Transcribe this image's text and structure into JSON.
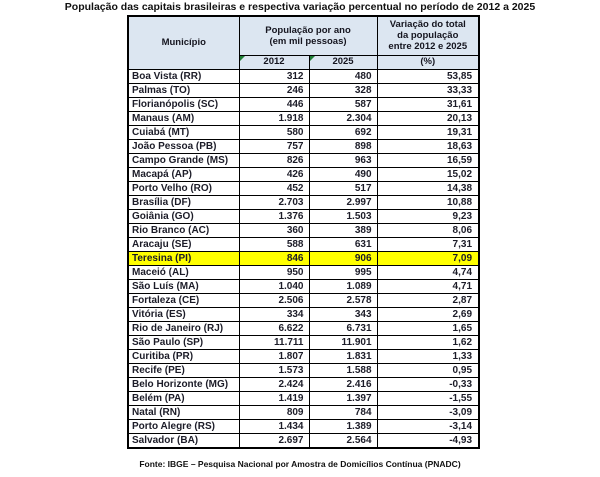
{
  "title": "População das capitais brasileiras e respectiva variação percentual no período de 2012 a 2025",
  "table": {
    "header": {
      "municipio": "Município",
      "populacao": "População por ano\n(em mil pessoas)",
      "variacao": "Variação do total\nda população\nentre 2012 e 2025",
      "variacao_unit": "(%)",
      "year1": "2012",
      "year2": "2025"
    },
    "header_bg": "#DCE6F1",
    "highlight_color": "#FFFF00",
    "flag_icon_color": "#1e7e34",
    "rows": [
      {
        "municipio": "Boa Vista (RR)",
        "p2012": "312",
        "p2025": "480",
        "variacao": "53,85",
        "highlight": false
      },
      {
        "municipio": "Palmas (TO)",
        "p2012": "246",
        "p2025": "328",
        "variacao": "33,33",
        "highlight": false
      },
      {
        "municipio": "Florianópolis (SC)",
        "p2012": "446",
        "p2025": "587",
        "variacao": "31,61",
        "highlight": false
      },
      {
        "municipio": "Manaus (AM)",
        "p2012": "1.918",
        "p2025": "2.304",
        "variacao": "20,13",
        "highlight": false
      },
      {
        "municipio": "Cuiabá (MT)",
        "p2012": "580",
        "p2025": "692",
        "variacao": "19,31",
        "highlight": false
      },
      {
        "municipio": "João Pessoa (PB)",
        "p2012": "757",
        "p2025": "898",
        "variacao": "18,63",
        "highlight": false
      },
      {
        "municipio": "Campo Grande (MS)",
        "p2012": "826",
        "p2025": "963",
        "variacao": "16,59",
        "highlight": false
      },
      {
        "municipio": "Macapá (AP)",
        "p2012": "426",
        "p2025": "490",
        "variacao": "15,02",
        "highlight": false
      },
      {
        "municipio": "Porto Velho (RO)",
        "p2012": "452",
        "p2025": "517",
        "variacao": "14,38",
        "highlight": false
      },
      {
        "municipio": "Brasília (DF)",
        "p2012": "2.703",
        "p2025": "2.997",
        "variacao": "10,88",
        "highlight": false
      },
      {
        "municipio": "Goiânia (GO)",
        "p2012": "1.376",
        "p2025": "1.503",
        "variacao": "9,23",
        "highlight": false
      },
      {
        "municipio": "Rio Branco (AC)",
        "p2012": "360",
        "p2025": "389",
        "variacao": "8,06",
        "highlight": false
      },
      {
        "municipio": "Aracaju (SE)",
        "p2012": "588",
        "p2025": "631",
        "variacao": "7,31",
        "highlight": false
      },
      {
        "municipio": "Teresina (PI)",
        "p2012": "846",
        "p2025": "906",
        "variacao": "7,09",
        "highlight": true
      },
      {
        "municipio": "Maceió (AL)",
        "p2012": "950",
        "p2025": "995",
        "variacao": "4,74",
        "highlight": false
      },
      {
        "municipio": "São Luís (MA)",
        "p2012": "1.040",
        "p2025": "1.089",
        "variacao": "4,71",
        "highlight": false
      },
      {
        "municipio": "Fortaleza (CE)",
        "p2012": "2.506",
        "p2025": "2.578",
        "variacao": "2,87",
        "highlight": false
      },
      {
        "municipio": "Vitória (ES)",
        "p2012": "334",
        "p2025": "343",
        "variacao": "2,69",
        "highlight": false
      },
      {
        "municipio": "Rio de Janeiro (RJ)",
        "p2012": "6.622",
        "p2025": "6.731",
        "variacao": "1,65",
        "highlight": false
      },
      {
        "municipio": "São Paulo (SP)",
        "p2012": "11.711",
        "p2025": "11.901",
        "variacao": "1,62",
        "highlight": false
      },
      {
        "municipio": "Curitiba (PR)",
        "p2012": "1.807",
        "p2025": "1.831",
        "variacao": "1,33",
        "highlight": false
      },
      {
        "municipio": "Recife (PE)",
        "p2012": "1.573",
        "p2025": "1.588",
        "variacao": "0,95",
        "highlight": false
      },
      {
        "municipio": "Belo Horizonte (MG)",
        "p2012": "2.424",
        "p2025": "2.416",
        "variacao": "-0,33",
        "highlight": false
      },
      {
        "municipio": "Belém (PA)",
        "p2012": "1.419",
        "p2025": "1.397",
        "variacao": "-1,55",
        "highlight": false
      },
      {
        "municipio": "Natal (RN)",
        "p2012": "809",
        "p2025": "784",
        "variacao": "-3,09",
        "highlight": false
      },
      {
        "municipio": "Porto Alegre (RS)",
        "p2012": "1.434",
        "p2025": "1.389",
        "variacao": "-3,14",
        "highlight": false
      },
      {
        "municipio": "Salvador (BA)",
        "p2012": "2.697",
        "p2025": "2.564",
        "variacao": "-4,93",
        "highlight": false
      }
    ]
  },
  "footer": "Fonte: IBGE – Pesquisa Nacional por Amostra de Domicílios Contínua (PNADC)",
  "chart_data": {
    "type": "table",
    "title": "População das capitais brasileiras e respectiva variação percentual no período de 2012 a 2025",
    "columns": [
      "Município",
      "População 2012 (mil pessoas)",
      "População 2025 (mil pessoas)",
      "Variação do total da população entre 2012 e 2025 (%)"
    ],
    "rows": [
      [
        "Boa Vista (RR)",
        312,
        480,
        53.85
      ],
      [
        "Palmas (TO)",
        246,
        328,
        33.33
      ],
      [
        "Florianópolis (SC)",
        446,
        587,
        31.61
      ],
      [
        "Manaus (AM)",
        1918,
        2304,
        20.13
      ],
      [
        "Cuiabá (MT)",
        580,
        692,
        19.31
      ],
      [
        "João Pessoa (PB)",
        757,
        898,
        18.63
      ],
      [
        "Campo Grande (MS)",
        826,
        963,
        16.59
      ],
      [
        "Macapá (AP)",
        426,
        490,
        15.02
      ],
      [
        "Porto Velho (RO)",
        452,
        517,
        14.38
      ],
      [
        "Brasília (DF)",
        2703,
        2997,
        10.88
      ],
      [
        "Goiânia (GO)",
        1376,
        1503,
        9.23
      ],
      [
        "Rio Branco (AC)",
        360,
        389,
        8.06
      ],
      [
        "Aracaju (SE)",
        588,
        631,
        7.31
      ],
      [
        "Teresina (PI)",
        846,
        906,
        7.09
      ],
      [
        "Maceió (AL)",
        950,
        995,
        4.74
      ],
      [
        "São Luís (MA)",
        1040,
        1089,
        4.71
      ],
      [
        "Fortaleza (CE)",
        2506,
        2578,
        2.87
      ],
      [
        "Vitória (ES)",
        334,
        343,
        2.69
      ],
      [
        "Rio de Janeiro (RJ)",
        6622,
        6731,
        1.65
      ],
      [
        "São Paulo (SP)",
        11711,
        11901,
        1.62
      ],
      [
        "Curitiba (PR)",
        1807,
        1831,
        1.33
      ],
      [
        "Recife (PE)",
        1573,
        1588,
        0.95
      ],
      [
        "Belo Horizonte (MG)",
        2424,
        2416,
        -0.33
      ],
      [
        "Belém (PA)",
        1419,
        1397,
        -1.55
      ],
      [
        "Natal (RN)",
        809,
        784,
        -3.09
      ],
      [
        "Porto Alegre (RS)",
        1434,
        1389,
        -3.14
      ],
      [
        "Salvador (BA)",
        2697,
        2564,
        -4.93
      ]
    ],
    "highlighted_row": "Teresina (PI)",
    "source": "Fonte: IBGE – Pesquisa Nacional por Amostra de Domicílios Contínua (PNADC)"
  }
}
